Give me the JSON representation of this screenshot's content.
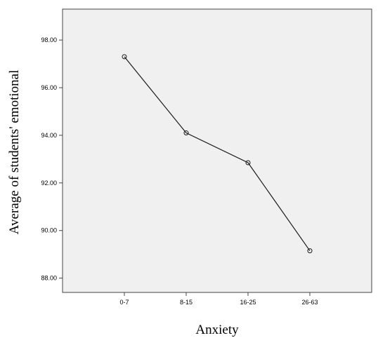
{
  "chart_data": {
    "type": "line",
    "title": "",
    "xlabel": "Anxiety",
    "ylabel": "Average of students' emotional",
    "categories": [
      "0-7",
      "8-15",
      "16-25",
      "26-63"
    ],
    "series": [
      {
        "values": [
          97.3,
          94.1,
          92.85,
          89.15
        ]
      }
    ],
    "ylim": [
      87.4,
      99.3
    ],
    "yticks": [
      "88.00",
      "90.00",
      "92.00",
      "94.00",
      "96.00",
      "98.00"
    ],
    "grid": false,
    "markers": "open-circle",
    "colors": {
      "line": "#1a1a1a",
      "plot_background": "#f0f0f0"
    }
  }
}
